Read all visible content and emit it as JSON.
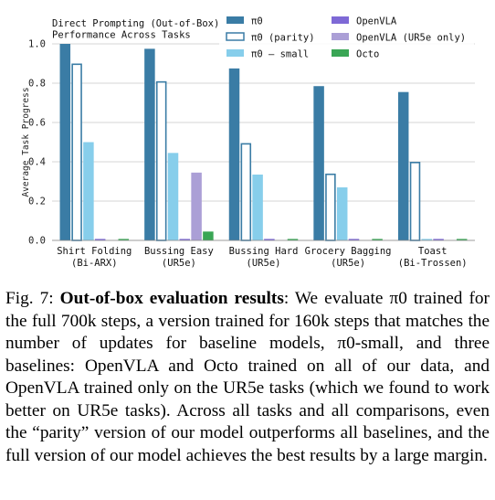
{
  "chart_data": {
    "type": "bar",
    "title": "Direct Prompting (Out-of-Box)\nPerformance Across Tasks",
    "title_lines": [
      "Direct Prompting (Out-of-Box)",
      "Performance Across Tasks"
    ],
    "ylabel": "Average Task Progress",
    "xlabel": "",
    "ylim": [
      0,
      1.0
    ],
    "yticks": [
      "0.0",
      "0.2",
      "0.4",
      "0.6",
      "0.8",
      "1.0"
    ],
    "grid": true,
    "legend_position": "top-right",
    "categories": [
      [
        "Shirt Folding",
        "(Bi-ARX)"
      ],
      [
        "Bussing Easy",
        "(UR5e)"
      ],
      [
        "Bussing Hard",
        "(UR5e)"
      ],
      [
        "Grocery Bagging",
        "(UR5e)"
      ],
      [
        "Toast",
        "(Bi-Trossen)"
      ]
    ],
    "series": [
      {
        "name": "π0",
        "key": "pi0",
        "color": "#3a7ca5",
        "style": "filled",
        "values": [
          1.0,
          0.975,
          0.875,
          0.785,
          0.755
        ]
      },
      {
        "name": "π0 (parity)",
        "key": "pi0_parity",
        "color": "#3a7ca5",
        "style": "outline",
        "values": [
          0.9,
          0.81,
          0.495,
          0.34,
          0.4
        ]
      },
      {
        "name": "π0 – small",
        "key": "pi0_small",
        "color": "#87ceeb",
        "style": "filled",
        "values": [
          0.5,
          0.445,
          0.335,
          0.27,
          0.0
        ]
      },
      {
        "name": "OpenVLA",
        "key": "openvla",
        "color": "#7e69d6",
        "style": "filled",
        "values": [
          0.0,
          0.0,
          0.0,
          0.0,
          0.0
        ]
      },
      {
        "name": "OpenVLA (UR5e only)",
        "key": "openvla_ur5e",
        "color": "#ab9fd6",
        "style": "filled",
        "values": [
          null,
          0.345,
          null,
          null,
          null
        ]
      },
      {
        "name": "Octo",
        "key": "octo",
        "color": "#3aa655",
        "style": "filled",
        "values": [
          0.0,
          0.045,
          0.0,
          0.0,
          0.0
        ]
      }
    ]
  },
  "caption": {
    "label": "Fig. 7: ",
    "title": "Out-of-box evaluation results",
    "body": ": We evaluate π0 trained for the full 700k steps, a version trained for 160k steps that matches the number of updates for baseline models, π0-small, and three baselines: OpenVLA and Octo trained on all of our data, and OpenVLA trained only on the UR5e tasks (which we found to work better on UR5e tasks). Across all tasks and all comparisons, even the “parity” version of our model outperforms all baselines, and the full version of our model achieves the best results by a large margin."
  }
}
